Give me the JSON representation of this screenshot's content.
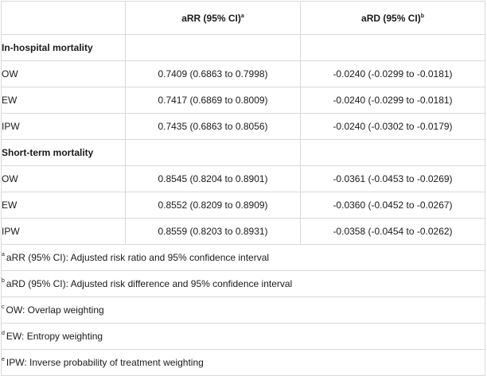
{
  "header": {
    "col_arr": "aRR (95% CI)",
    "col_arr_sup": "a",
    "col_ard": "aRD (95% CI)",
    "col_ard_sup": "b"
  },
  "groups": [
    {
      "title": "In-hospital mortality",
      "rows": [
        {
          "label": "OW",
          "arr": "0.7409 (0.6863 to 0.7998)",
          "ard": "-0.0240 (-0.0299 to -0.0181)"
        },
        {
          "label": "EW",
          "arr": "0.7417 (0.6869 to 0.8009)",
          "ard": "-0.0240 (-0.0299 to -0.0181)"
        },
        {
          "label": "IPW",
          "arr": "0.7435 (0.6863 to 0.8056)",
          "ard": "-0.0240 (-0.0302 to -0.0179)"
        }
      ]
    },
    {
      "title": "Short-term mortality",
      "rows": [
        {
          "label": "OW",
          "arr": "0.8545 (0.8204 to 0.8901)",
          "ard": "-0.0361 (-0.0453 to -0.0269)"
        },
        {
          "label": "EW",
          "arr": "0.8552 (0.8209 to 0.8909)",
          "ard": "-0.0360 (-0.0452 to -0.0267)"
        },
        {
          "label": "IPW",
          "arr": "0.8559 (0.8203 to 0.8931)",
          "ard": "-0.0358 (-0.0454 to -0.0262)"
        }
      ]
    }
  ],
  "footnotes": [
    {
      "mark": "a",
      "text": "aRR (95% CI): Adjusted risk ratio and 95% confidence interval"
    },
    {
      "mark": "b",
      "text": "aRD (95% CI): Adjusted risk difference and 95% confidence interval"
    },
    {
      "mark": "c",
      "text": "OW: Overlap weighting"
    },
    {
      "mark": "d",
      "text": "EW: Entropy weighting"
    },
    {
      "mark": "e",
      "text": "IPW: Inverse probability of treatment weighting"
    }
  ]
}
